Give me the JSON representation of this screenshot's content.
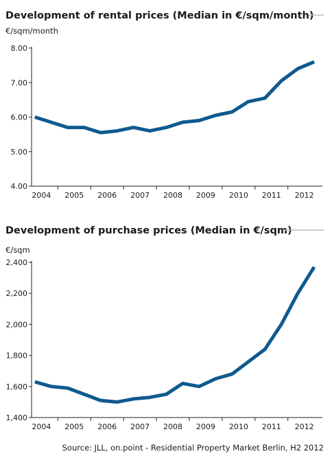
{
  "chart_data": [
    {
      "type": "line",
      "title": "Development of rental prices (Median in €/sqm/month)",
      "ylabel": "€/sqm/month",
      "xlabel": "",
      "ylim": [
        4.0,
        8.0
      ],
      "yticks": [
        "4.00",
        "5.00",
        "6.00",
        "7.00",
        "8.00"
      ],
      "categories": [
        "2004",
        "2005",
        "2006",
        "2007",
        "2008",
        "2009",
        "2010",
        "2011",
        "2012"
      ],
      "grid": false,
      "color": "#0e5a8f",
      "series": [
        {
          "x": [
            2003.8,
            2004.3,
            2004.8,
            2005.3,
            2005.8,
            2006.3,
            2006.8,
            2007.3,
            2007.8,
            2008.3,
            2008.8,
            2009.3,
            2009.8,
            2010.3,
            2010.8,
            2011.3,
            2011.8,
            2012.3
          ],
          "values": [
            6.0,
            5.85,
            5.7,
            5.7,
            5.55,
            5.6,
            5.7,
            5.6,
            5.7,
            5.85,
            5.9,
            6.05,
            6.15,
            6.45,
            6.55,
            7.05,
            7.4,
            7.6
          ]
        }
      ]
    },
    {
      "type": "line",
      "title": "Development of purchase prices (Median in €/sqm)",
      "ylabel": "€/sqm",
      "xlabel": "",
      "ylim": [
        1400,
        2400
      ],
      "yticks": [
        "1,400",
        "1,600",
        "1,800",
        "2,000",
        "2,200",
        "2,400"
      ],
      "categories": [
        "2004",
        "2005",
        "2006",
        "2007",
        "2008",
        "2009",
        "2010",
        "2011",
        "2012"
      ],
      "grid": false,
      "color": "#0e5a8f",
      "series": [
        {
          "x": [
            2003.8,
            2004.3,
            2004.8,
            2005.3,
            2005.8,
            2006.3,
            2006.8,
            2007.3,
            2007.8,
            2008.3,
            2008.8,
            2009.3,
            2009.8,
            2010.3,
            2010.8,
            2011.3,
            2011.8,
            2012.3
          ],
          "values": [
            1630,
            1600,
            1590,
            1550,
            1510,
            1500,
            1520,
            1530,
            1550,
            1620,
            1600,
            1650,
            1680,
            1760,
            1840,
            2000,
            2200,
            2370
          ]
        }
      ]
    }
  ],
  "source": "Source: JLL, on.point - Residential Property Market Berlin, H2 2012"
}
